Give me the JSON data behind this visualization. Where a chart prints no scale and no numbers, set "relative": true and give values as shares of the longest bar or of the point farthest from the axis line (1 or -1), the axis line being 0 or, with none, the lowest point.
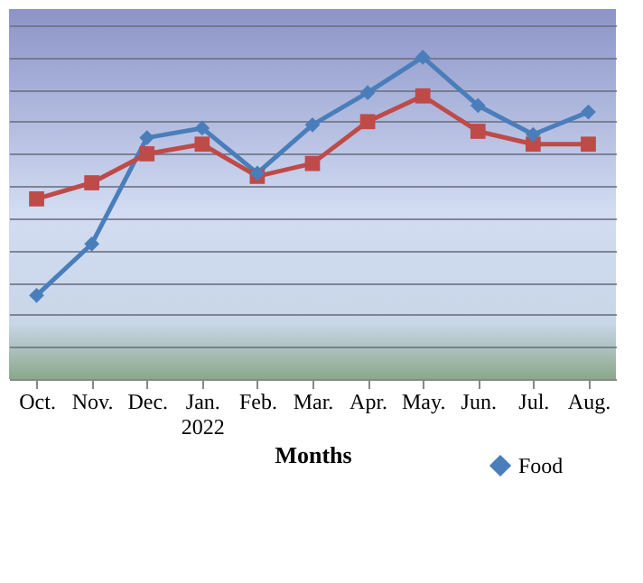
{
  "chart_data": {
    "type": "line",
    "xlabel": "Months",
    "relative": true,
    "grid": "y",
    "legend": "bottom right",
    "categories": [
      "Oct.",
      "Nov.",
      "Dec.",
      "Jan. 2022",
      "Feb.",
      "Mar.",
      "Apr.",
      "May.",
      "Jun.",
      "Jul.",
      "Aug."
    ],
    "series": [
      {
        "name": "Food",
        "color": "#4a7ebb",
        "marker": "diamond",
        "values": [
          0.26,
          0.42,
          0.75,
          0.78,
          0.64,
          0.79,
          0.89,
          1,
          0.85,
          0.76,
          0.83
        ]
      },
      {
        "color": "#be4b48",
        "marker": "square",
        "values": [
          0.56,
          0.61,
          0.7,
          0.73,
          0.63,
          0.67,
          0.8,
          0.88,
          0.77,
          0.73,
          0.73
        ]
      }
    ]
  }
}
